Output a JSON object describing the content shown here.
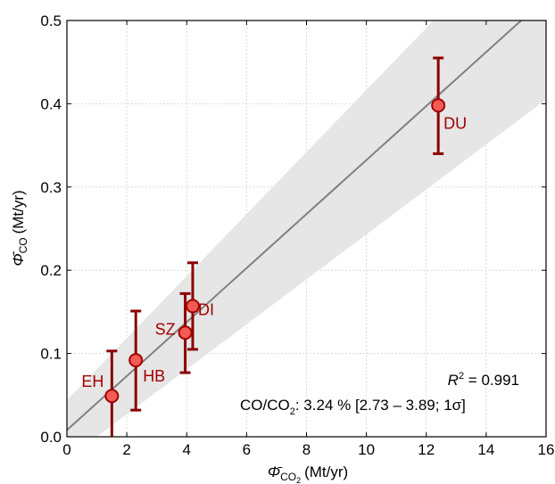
{
  "chart_data": {
    "type": "scatter",
    "title": "",
    "xlabel": {
      "symbol": "Φ̄",
      "subscript": "CO",
      "subscript_sub": "2",
      "unit": "(Mt/yr)"
    },
    "ylabel": {
      "symbol": "Φ̄",
      "subscript": "CO",
      "unit": "(Mt/yr)"
    },
    "xlim": [
      0,
      16
    ],
    "ylim": [
      0,
      0.5
    ],
    "xticks": [
      "0",
      "2",
      "4",
      "6",
      "8",
      "10",
      "12",
      "14",
      "16"
    ],
    "yticks": [
      "0.0",
      "0.1",
      "0.2",
      "0.3",
      "0.4",
      "0.5"
    ],
    "grid": true,
    "points": [
      {
        "label": "EH",
        "x": 1.5,
        "y": 0.049,
        "yerr_low": 0.0,
        "yerr_high": 0.103
      },
      {
        "label": "HB",
        "x": 2.3,
        "y": 0.092,
        "yerr_low": 0.032,
        "yerr_high": 0.151
      },
      {
        "label": "SZ",
        "x": 3.95,
        "y": 0.125,
        "yerr_low": 0.077,
        "yerr_high": 0.172
      },
      {
        "label": "DI",
        "x": 4.2,
        "y": 0.157,
        "yerr_low": 0.105,
        "yerr_high": 0.209
      },
      {
        "label": "DU",
        "x": 12.4,
        "y": 0.398,
        "yerr_low": 0.34,
        "yerr_high": 0.455
      }
    ],
    "fit": {
      "x0": 0.0,
      "y0": 0.008,
      "x1": 16,
      "y1": 0.527
    },
    "band": {
      "upper": [
        [
          0.0,
          0.044
        ],
        [
          16,
          0.64
        ]
      ],
      "lower": [
        [
          1.0,
          0.0
        ],
        [
          16,
          0.405
        ]
      ]
    },
    "annotations": {
      "r2_label": "R",
      "r2_sup": "2",
      "r2_value": " = 0.991",
      "ratio_prefix": "CO/CO",
      "ratio_sub": "2",
      "ratio_text": ":  3.24 % [2.73 – 3.89; 1σ]"
    },
    "colors": {
      "point_fill": "#f25c54",
      "point_edge": "#a30000",
      "errorbar": "#8b0000",
      "label": "#a30000",
      "fit_line": "#808080",
      "band": "#e6e6e6",
      "grid": "#d9d9d9"
    }
  }
}
